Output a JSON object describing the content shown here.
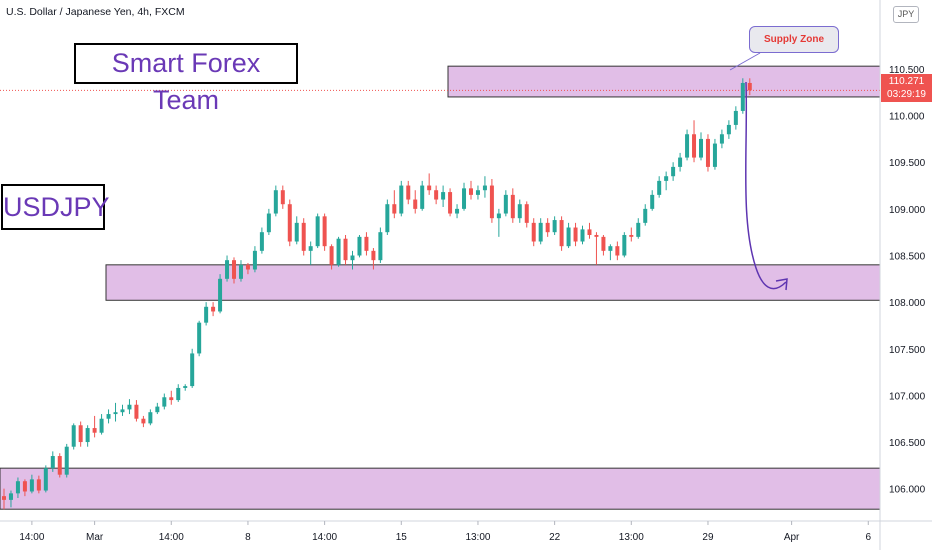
{
  "header": {
    "title": "U.S. Dollar / Japanese Yen, 4h, FXCM",
    "currency_badge": "JPY"
  },
  "annotations": {
    "brand": "Smart Forex Team",
    "pair": "USDJPY",
    "zone_label": "Supply Zone"
  },
  "price_tag": {
    "price": "110.271",
    "countdown": "03:29:19"
  },
  "colors": {
    "bull": "#26a69a",
    "bear": "#ef5350",
    "zone_fill": "#e1bee7",
    "zone_text": "#e53935",
    "brand_text": "#6a39b6",
    "arrow": "#5e35b1"
  },
  "chart_data": {
    "type": "candlestick",
    "title": "U.S. Dollar / Japanese Yen, 4h, FXCM",
    "ylim": [
      105.75,
      111.1
    ],
    "y_ticks": [
      "110.500",
      "110.000",
      "109.500",
      "109.000",
      "108.500",
      "108.000",
      "107.500",
      "107.000",
      "106.500",
      "106.000"
    ],
    "y_tick_values": [
      110.5,
      110.0,
      109.5,
      109.0,
      108.5,
      108.0,
      107.5,
      107.0,
      106.5,
      106.0
    ],
    "x_ticks": [
      "14:00",
      "Mar",
      "14:00",
      "8",
      "14:00",
      "15",
      "13:00",
      "22",
      "13:00",
      "29",
      "Apr",
      "6"
    ],
    "x_tick_index": [
      4,
      13,
      24,
      35,
      46,
      57,
      68,
      79,
      90,
      101,
      113,
      124
    ],
    "grid": false,
    "zones": [
      {
        "name": "Supply Zone",
        "from": 110.2,
        "to": 110.53
      },
      {
        "name": "",
        "from": 108.02,
        "to": 108.4
      },
      {
        "name": "",
        "from": 105.78,
        "to": 106.22
      }
    ],
    "last_price": 110.271,
    "candles": [
      [
        105.92,
        106.0,
        105.78,
        105.88
      ],
      [
        105.88,
        105.98,
        105.8,
        105.95
      ],
      [
        105.95,
        106.12,
        105.9,
        106.08
      ],
      [
        106.08,
        106.1,
        105.92,
        105.97
      ],
      [
        105.97,
        106.15,
        105.95,
        106.1
      ],
      [
        106.1,
        106.14,
        105.95,
        105.98
      ],
      [
        105.98,
        106.25,
        105.96,
        106.22
      ],
      [
        106.22,
        106.4,
        106.18,
        106.35
      ],
      [
        106.35,
        106.38,
        106.12,
        106.15
      ],
      [
        106.15,
        106.48,
        106.12,
        106.45
      ],
      [
        106.45,
        106.7,
        106.42,
        106.68
      ],
      [
        106.68,
        106.72,
        106.45,
        106.5
      ],
      [
        106.5,
        106.68,
        106.45,
        106.65
      ],
      [
        106.65,
        106.78,
        106.55,
        106.6
      ],
      [
        106.6,
        106.8,
        106.58,
        106.75
      ],
      [
        106.75,
        106.85,
        106.7,
        106.8
      ],
      [
        106.8,
        106.92,
        106.72,
        106.82
      ],
      [
        106.82,
        106.9,
        106.78,
        106.85
      ],
      [
        106.85,
        106.96,
        106.8,
        106.9
      ],
      [
        106.9,
        106.95,
        106.72,
        106.75
      ],
      [
        106.75,
        106.78,
        106.66,
        106.7
      ],
      [
        106.7,
        106.85,
        106.68,
        106.82
      ],
      [
        106.82,
        106.92,
        106.8,
        106.88
      ],
      [
        106.88,
        107.02,
        106.85,
        106.98
      ],
      [
        106.98,
        107.05,
        106.9,
        106.95
      ],
      [
        106.95,
        107.12,
        106.93,
        107.08
      ],
      [
        107.08,
        107.12,
        107.05,
        107.1
      ],
      [
        107.1,
        107.5,
        107.08,
        107.45
      ],
      [
        107.45,
        107.8,
        107.42,
        107.78
      ],
      [
        107.78,
        108.0,
        107.75,
        107.95
      ],
      [
        107.95,
        108.0,
        107.85,
        107.9
      ],
      [
        107.9,
        108.3,
        107.88,
        108.25
      ],
      [
        108.25,
        108.5,
        108.22,
        108.45
      ],
      [
        108.45,
        108.48,
        108.2,
        108.25
      ],
      [
        108.25,
        108.45,
        108.22,
        108.4
      ],
      [
        108.4,
        108.42,
        108.3,
        108.35
      ],
      [
        108.35,
        108.6,
        108.32,
        108.55
      ],
      [
        108.55,
        108.8,
        108.52,
        108.75
      ],
      [
        108.75,
        109.0,
        108.72,
        108.95
      ],
      [
        108.95,
        109.25,
        108.92,
        109.2
      ],
      [
        109.2,
        109.25,
        109.0,
        109.05
      ],
      [
        109.05,
        109.1,
        108.6,
        108.65
      ],
      [
        108.65,
        108.92,
        108.62,
        108.85
      ],
      [
        108.85,
        108.9,
        108.5,
        108.55
      ],
      [
        108.55,
        108.65,
        108.4,
        108.6
      ],
      [
        108.6,
        108.95,
        108.58,
        108.92
      ],
      [
        108.92,
        108.95,
        108.55,
        108.6
      ],
      [
        108.6,
        108.62,
        108.35,
        108.4
      ],
      [
        108.4,
        108.7,
        108.38,
        108.68
      ],
      [
        108.68,
        108.72,
        108.4,
        108.45
      ],
      [
        108.45,
        108.55,
        108.35,
        108.5
      ],
      [
        108.5,
        108.72,
        108.48,
        108.7
      ],
      [
        108.7,
        108.75,
        108.5,
        108.55
      ],
      [
        108.55,
        108.58,
        108.35,
        108.45
      ],
      [
        108.45,
        108.8,
        108.42,
        108.75
      ],
      [
        108.75,
        109.1,
        108.72,
        109.05
      ],
      [
        109.05,
        109.2,
        108.9,
        108.95
      ],
      [
        108.95,
        109.3,
        108.92,
        109.25
      ],
      [
        109.25,
        109.3,
        109.05,
        109.1
      ],
      [
        109.1,
        109.2,
        108.95,
        109.0
      ],
      [
        109.0,
        109.3,
        108.98,
        109.25
      ],
      [
        109.25,
        109.38,
        109.15,
        109.2
      ],
      [
        109.2,
        109.25,
        109.05,
        109.1
      ],
      [
        109.1,
        109.25,
        109.02,
        109.18
      ],
      [
        109.18,
        109.22,
        108.92,
        108.95
      ],
      [
        108.95,
        109.05,
        108.9,
        109.0
      ],
      [
        109.0,
        109.28,
        108.98,
        109.22
      ],
      [
        109.22,
        109.3,
        109.1,
        109.15
      ],
      [
        109.15,
        109.25,
        109.1,
        109.2
      ],
      [
        109.2,
        109.35,
        109.12,
        109.25
      ],
      [
        109.25,
        109.32,
        108.85,
        108.9
      ],
      [
        108.9,
        109.0,
        108.7,
        108.95
      ],
      [
        108.95,
        109.2,
        108.92,
        109.15
      ],
      [
        109.15,
        109.22,
        108.85,
        108.9
      ],
      [
        108.9,
        109.1,
        108.85,
        109.05
      ],
      [
        109.05,
        109.08,
        108.8,
        108.85
      ],
      [
        108.85,
        108.9,
        108.6,
        108.65
      ],
      [
        108.65,
        108.9,
        108.62,
        108.85
      ],
      [
        108.85,
        108.9,
        108.7,
        108.75
      ],
      [
        108.75,
        108.92,
        108.72,
        108.88
      ],
      [
        108.88,
        108.92,
        108.55,
        108.6
      ],
      [
        108.6,
        108.85,
        108.58,
        108.8
      ],
      [
        108.8,
        108.85,
        108.6,
        108.65
      ],
      [
        108.65,
        108.82,
        108.62,
        108.78
      ],
      [
        108.78,
        108.85,
        108.68,
        108.72
      ],
      [
        108.72,
        108.75,
        108.4,
        108.7
      ],
      [
        108.7,
        108.72,
        108.5,
        108.55
      ],
      [
        108.55,
        108.62,
        108.45,
        108.6
      ],
      [
        108.6,
        108.65,
        108.45,
        108.5
      ],
      [
        108.5,
        108.75,
        108.48,
        108.72
      ],
      [
        108.72,
        108.8,
        108.65,
        108.7
      ],
      [
        108.7,
        108.9,
        108.68,
        108.85
      ],
      [
        108.85,
        109.05,
        108.82,
        109.0
      ],
      [
        109.0,
        109.2,
        108.98,
        109.15
      ],
      [
        109.15,
        109.35,
        109.12,
        109.3
      ],
      [
        109.3,
        109.4,
        109.2,
        109.35
      ],
      [
        109.35,
        109.5,
        109.3,
        109.45
      ],
      [
        109.45,
        109.6,
        109.4,
        109.55
      ],
      [
        109.55,
        109.85,
        109.52,
        109.8
      ],
      [
        109.8,
        109.95,
        109.5,
        109.55
      ],
      [
        109.55,
        109.82,
        109.52,
        109.75
      ],
      [
        109.75,
        109.8,
        109.4,
        109.45
      ],
      [
        109.45,
        109.75,
        109.42,
        109.7
      ],
      [
        109.7,
        109.85,
        109.65,
        109.8
      ],
      [
        109.8,
        109.95,
        109.75,
        109.9
      ],
      [
        109.9,
        110.1,
        109.85,
        110.05
      ],
      [
        110.05,
        110.4,
        110.02,
        110.35
      ],
      [
        110.35,
        110.4,
        110.22,
        110.271
      ]
    ]
  }
}
